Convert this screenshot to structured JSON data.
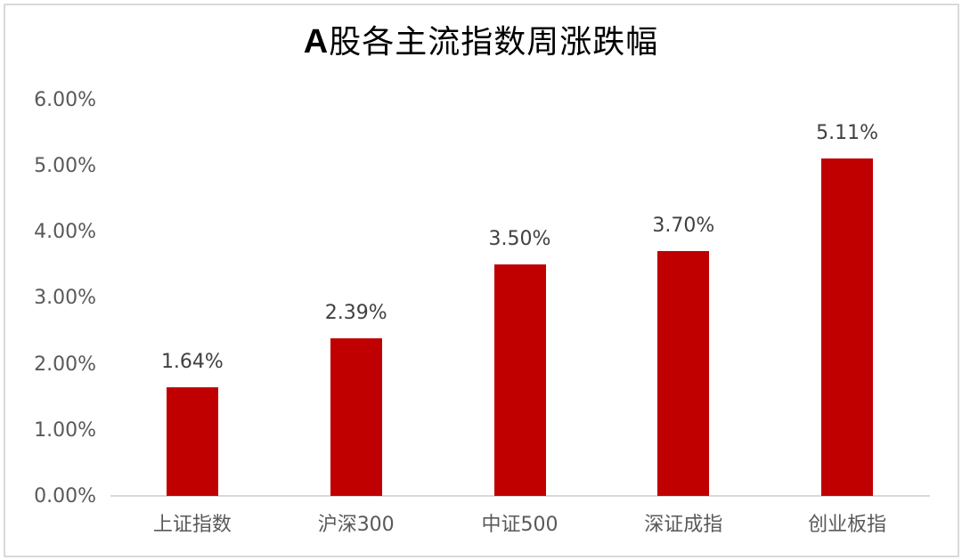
{
  "chart_data": {
    "type": "bar",
    "title": "A股各主流指数周涨跌幅",
    "title_prefix": "A",
    "title_rest": "股各主流指数周涨跌幅",
    "categories": [
      "上证指数",
      "沪深300",
      "中证500",
      "深证成指",
      "创业板指"
    ],
    "values": [
      1.64,
      2.39,
      3.5,
      3.7,
      5.11
    ],
    "value_labels": [
      "1.64%",
      "2.39%",
      "3.50%",
      "3.70%",
      "5.11%"
    ],
    "xlabel": "",
    "ylabel": "",
    "ylim": [
      0,
      6
    ],
    "yticks": [
      "0.00%",
      "1.00%",
      "2.00%",
      "3.00%",
      "4.00%",
      "5.00%",
      "6.00%"
    ],
    "grid": false,
    "legend": null,
    "bar_color": "#C00000"
  }
}
